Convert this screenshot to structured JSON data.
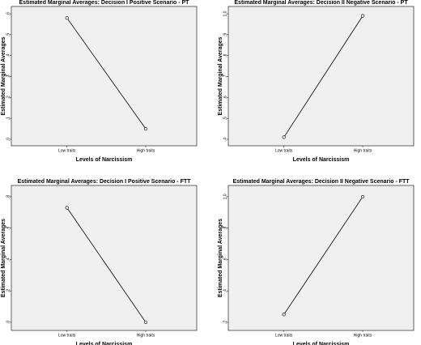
{
  "chart_data": [
    {
      "type": "line",
      "title": "Estimated Marginal Averages:  Decision I Positive Scenario - PT",
      "x_label": "Levels of Narcissism",
      "y_label": "Estimated Marginal Averages",
      "categories": [
        "Low traits",
        "High traits"
      ],
      "values": [
        0.58,
        0.05
      ],
      "ylim": [
        -0.031,
        0.635
      ],
      "yticks": [
        {
          "value": 0,
          "label": ",0"
        },
        {
          "value": 0.1,
          "label": ",1"
        },
        {
          "value": 0.2,
          "label": ",2"
        },
        {
          "value": 0.3,
          "label": ",3"
        },
        {
          "value": 0.4,
          "label": ",4"
        },
        {
          "value": 0.5,
          "label": ",5"
        },
        {
          "value": 0.6,
          "label": ",6"
        }
      ],
      "color": "#000000"
    },
    {
      "type": "line",
      "title": "Estimated Marginal Averages:  Decision II Negative Scenario - PT",
      "x_label": "Levels of Narcissism",
      "y_label": "Estimated Marginal Averages",
      "categories": [
        "Low traits",
        "High traits"
      ],
      "values": [
        0.41,
        0.99
      ],
      "ylim": [
        0.369,
        1.035
      ],
      "yticks": [
        {
          "value": 0.4,
          "label": ",4"
        },
        {
          "value": 0.5,
          "label": ",5"
        },
        {
          "value": 0.6,
          "label": ",6"
        },
        {
          "value": 0.7,
          "label": ",7"
        },
        {
          "value": 0.8,
          "label": ",8"
        },
        {
          "value": 0.9,
          "label": ",9"
        },
        {
          "value": 1,
          "label": "1,0"
        }
      ],
      "color": "#000000"
    },
    {
      "type": "line",
      "title": "Estimated Marginal Averages:  Decision I Positive Scenario - FTT",
      "x_label": "Levels of Narcissism",
      "y_label": "Estimated Marginal Averages",
      "categories": [
        "Low traits",
        "High traits"
      ],
      "values": [
        0.73,
        0.0
      ],
      "ylim": [
        -0.052,
        0.872
      ],
      "yticks": [
        {
          "value": 0,
          "label": ",0"
        },
        {
          "value": 0.2,
          "label": ",2"
        },
        {
          "value": 0.4,
          "label": ",4"
        },
        {
          "value": 0.6,
          "label": ",6"
        },
        {
          "value": 0.8,
          "label": ",8"
        }
      ],
      "color": "#000000"
    },
    {
      "type": "line",
      "title": "Estimated Marginal Averages:  Decision II Negative Scenario - FTT",
      "x_label": "Levels of Narcissism",
      "y_label": "Estimated Marginal Averages",
      "categories": [
        "Low traits",
        "High traits"
      ],
      "values": [
        0.25,
        1.0
      ],
      "ylim": [
        0.148,
        1.072
      ],
      "yticks": [
        {
          "value": 0.2,
          "label": ",2"
        },
        {
          "value": 0.4,
          "label": ",4"
        },
        {
          "value": 0.6,
          "label": ",6"
        },
        {
          "value": 0.8,
          "label": ",8"
        },
        {
          "value": 1,
          "label": "1,0"
        }
      ],
      "color": "#000000"
    }
  ]
}
